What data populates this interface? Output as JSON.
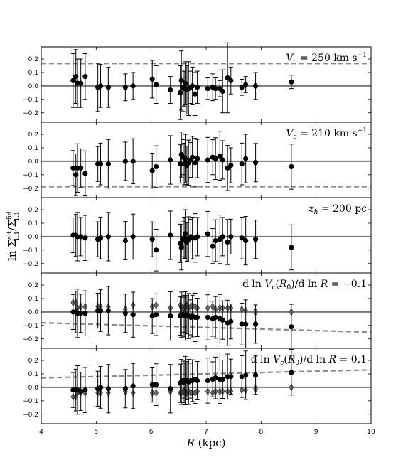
{
  "figure": {
    "xlabel": "R (kpc)",
    "ylabel": "ln Σ^alt_1.1 / Σ^fid_1.1"
  },
  "chart_data": {
    "type": "scatter",
    "xlim": [
      4,
      10
    ],
    "xticks": [
      4,
      5,
      6,
      7,
      8,
      9,
      10
    ],
    "ylim": [
      -0.27,
      0.29
    ],
    "yticks": [
      -0.2,
      -0.1,
      0.0,
      0.1,
      0.2
    ],
    "ytick_labels": [
      "−0.2",
      "−0.1",
      "0.0",
      "0.1",
      "0.2"
    ],
    "zero_line": 0.0,
    "colors": {
      "primary": "#000000",
      "secondary": "#707070",
      "reference": "#888888"
    },
    "panels": [
      {
        "label": "V_c = 250 km s^-1",
        "reference_line": {
          "x": [
            4,
            10
          ],
          "y": [
            0.167,
            0.167
          ]
        },
        "series": [
          {
            "marker": "circle",
            "x": [
              4.58,
              4.63,
              4.66,
              4.72,
              4.8,
              5.03,
              5.08,
              5.22,
              5.53,
              5.67,
              6.02,
              6.09,
              6.35,
              6.53,
              6.55,
              6.58,
              6.6,
              6.62,
              6.65,
              6.68,
              6.72,
              6.75,
              6.8,
              6.84,
              7.03,
              7.12,
              7.17,
              7.25,
              7.3,
              7.39,
              7.45,
              7.65,
              7.72,
              7.9,
              8.55
            ],
            "y": [
              0.04,
              0.07,
              0.02,
              0.02,
              0.07,
              -0.01,
              0.0,
              -0.01,
              -0.01,
              0.0,
              0.05,
              0.01,
              -0.03,
              -0.05,
              0.04,
              -0.01,
              -0.02,
              0.02,
              -0.03,
              -0.02,
              -0.01,
              0.0,
              -0.06,
              -0.01,
              -0.02,
              -0.01,
              -0.02,
              -0.02,
              -0.04,
              0.06,
              0.04,
              -0.01,
              0.01,
              0.0,
              0.03
            ],
            "yerr": [
              0.2,
              0.2,
              0.18,
              0.18,
              0.17,
              0.18,
              0.16,
              0.15,
              0.1,
              0.1,
              0.14,
              0.14,
              0.1,
              0.2,
              0.22,
              0.18,
              0.13,
              0.16,
              0.18,
              0.2,
              0.12,
              0.14,
              0.16,
              0.12,
              0.08,
              0.1,
              0.08,
              0.06,
              0.16,
              0.26,
              0.1,
              0.06,
              0.06,
              0.1,
              0.05
            ]
          }
        ]
      },
      {
        "label": "V_c = 210 km s^-1",
        "reference_line": {
          "x": [
            4,
            10
          ],
          "y": [
            -0.188,
            -0.188
          ]
        },
        "series": [
          {
            "marker": "circle",
            "x": [
              4.58,
              4.63,
              4.66,
              4.72,
              4.8,
              5.03,
              5.08,
              5.22,
              5.53,
              5.67,
              6.02,
              6.09,
              6.35,
              6.53,
              6.55,
              6.58,
              6.6,
              6.62,
              6.65,
              6.68,
              6.72,
              6.75,
              6.8,
              6.84,
              7.03,
              7.12,
              7.17,
              7.25,
              7.3,
              7.39,
              7.45,
              7.65,
              7.72,
              7.9,
              8.55
            ],
            "y": [
              -0.05,
              -0.1,
              -0.05,
              -0.05,
              -0.09,
              -0.02,
              -0.02,
              -0.02,
              0.0,
              0.0,
              -0.07,
              -0.04,
              0.01,
              -0.02,
              0.05,
              0.03,
              -0.02,
              0.02,
              -0.03,
              -0.01,
              0.01,
              0.03,
              -0.01,
              0.02,
              0.01,
              0.03,
              0.02,
              0.04,
              0.01,
              -0.05,
              -0.03,
              -0.02,
              0.02,
              -0.01,
              -0.04
            ]
          }
        ]
      },
      {
        "label": "z_h = 200 pc",
        "reference_line": null,
        "series": [
          {
            "marker": "circle",
            "x": [
              4.58,
              4.63,
              4.66,
              4.72,
              4.8,
              5.03,
              5.08,
              5.22,
              5.53,
              5.67,
              6.02,
              6.09,
              6.35,
              6.53,
              6.55,
              6.58,
              6.6,
              6.62,
              6.65,
              6.68,
              6.72,
              6.75,
              6.8,
              6.84,
              7.03,
              7.12,
              7.17,
              7.25,
              7.3,
              7.39,
              7.45,
              7.65,
              7.72,
              7.9,
              8.55
            ],
            "y": [
              0.01,
              0.01,
              0.0,
              0.0,
              -0.01,
              -0.02,
              -0.01,
              0.0,
              -0.03,
              0.0,
              -0.02,
              -0.1,
              0.01,
              -0.05,
              -0.08,
              -0.02,
              -0.01,
              0.02,
              -0.04,
              -0.02,
              0.0,
              -0.01,
              -0.01,
              0.0,
              0.02,
              -0.07,
              -0.03,
              -0.02,
              0.0,
              -0.04,
              0.0,
              -0.01,
              -0.03,
              -0.02,
              -0.08
            ]
          }
        ]
      },
      {
        "label": "d ln V_c(R_0) / d ln R = −0.1",
        "reference_line": {
          "x": [
            4,
            10
          ],
          "y": [
            -0.08,
            -0.15
          ]
        },
        "series": [
          {
            "marker": "diamond",
            "x": [
              4.58,
              4.63,
              4.66,
              4.72,
              4.8,
              5.03,
              5.08,
              5.22,
              5.53,
              5.67,
              6.02,
              6.09,
              6.35,
              6.53,
              6.55,
              6.58,
              6.6,
              6.62,
              6.65,
              6.68,
              6.72,
              6.75,
              6.8,
              6.84,
              7.03,
              7.12,
              7.17,
              7.25,
              7.3,
              7.39,
              7.45,
              7.65,
              7.72,
              7.9,
              8.55
            ],
            "y": [
              0.07,
              0.07,
              0.03,
              0.04,
              0.04,
              0.04,
              0.04,
              0.04,
              0.02,
              0.05,
              0.04,
              0.05,
              0.03,
              0.05,
              0.04,
              0.02,
              0.03,
              0.04,
              0.05,
              0.03,
              0.04,
              0.05,
              0.04,
              0.03,
              0.03,
              0.04,
              0.02,
              0.03,
              0.03,
              0.03,
              0.03,
              0.02,
              0.01,
              0.0,
              0.0
            ]
          },
          {
            "marker": "circle",
            "x": [
              4.58,
              4.63,
              4.66,
              4.72,
              4.8,
              5.03,
              5.08,
              5.22,
              5.53,
              5.67,
              6.02,
              6.09,
              6.35,
              6.53,
              6.55,
              6.58,
              6.6,
              6.62,
              6.65,
              6.68,
              6.72,
              6.75,
              6.8,
              6.84,
              7.03,
              7.12,
              7.17,
              7.25,
              7.3,
              7.39,
              7.45,
              7.65,
              7.72,
              7.9,
              8.55
            ],
            "y": [
              0.0,
              0.0,
              -0.01,
              -0.01,
              -0.01,
              0.01,
              0.01,
              0.01,
              -0.01,
              -0.02,
              -0.03,
              -0.02,
              -0.03,
              -0.03,
              -0.02,
              -0.02,
              -0.03,
              -0.03,
              -0.02,
              -0.03,
              -0.04,
              -0.03,
              -0.04,
              -0.04,
              -0.04,
              -0.05,
              -0.04,
              -0.05,
              -0.06,
              -0.08,
              -0.07,
              -0.09,
              -0.09,
              -0.09,
              -0.11
            ]
          }
        ]
      },
      {
        "label": "d ln V_c(R_0) / d ln R = 0.1",
        "reference_line": {
          "x": [
            4,
            10
          ],
          "y": [
            0.07,
            0.13
          ]
        },
        "series": [
          {
            "marker": "diamond",
            "x": [
              4.58,
              4.63,
              4.66,
              4.72,
              4.8,
              5.03,
              5.08,
              5.22,
              5.53,
              5.67,
              6.02,
              6.09,
              6.35,
              6.53,
              6.55,
              6.58,
              6.6,
              6.62,
              6.65,
              6.68,
              6.72,
              6.75,
              6.8,
              6.84,
              7.03,
              7.12,
              7.17,
              7.25,
              7.3,
              7.39,
              7.45,
              7.65,
              7.72,
              7.9,
              8.55
            ],
            "y": [
              -0.07,
              -0.07,
              -0.04,
              -0.04,
              -0.04,
              -0.04,
              -0.04,
              -0.04,
              -0.03,
              -0.04,
              -0.04,
              -0.04,
              -0.03,
              -0.04,
              -0.04,
              -0.03,
              -0.03,
              -0.04,
              -0.04,
              -0.03,
              -0.04,
              -0.04,
              -0.04,
              -0.03,
              -0.03,
              -0.04,
              -0.03,
              -0.03,
              -0.03,
              -0.03,
              -0.03,
              -0.02,
              -0.02,
              -0.01,
              0.0
            ]
          },
          {
            "marker": "circle",
            "x": [
              4.58,
              4.63,
              4.66,
              4.72,
              4.8,
              5.03,
              5.08,
              5.22,
              5.53,
              5.67,
              6.02,
              6.09,
              6.35,
              6.53,
              6.55,
              6.58,
              6.6,
              6.62,
              6.65,
              6.68,
              6.72,
              6.75,
              6.8,
              6.84,
              7.03,
              7.12,
              7.17,
              7.25,
              7.3,
              7.39,
              7.45,
              7.65,
              7.72,
              7.9,
              8.55
            ],
            "y": [
              -0.02,
              -0.02,
              -0.02,
              -0.03,
              -0.02,
              -0.01,
              0.0,
              -0.01,
              -0.01,
              0.01,
              0.02,
              0.02,
              -0.01,
              0.03,
              0.04,
              0.05,
              0.04,
              0.05,
              0.05,
              0.04,
              0.05,
              0.05,
              0.06,
              0.05,
              0.05,
              0.06,
              0.07,
              0.06,
              0.06,
              0.08,
              0.08,
              0.08,
              0.09,
              0.09,
              0.11
            ]
          }
        ]
      }
    ]
  }
}
